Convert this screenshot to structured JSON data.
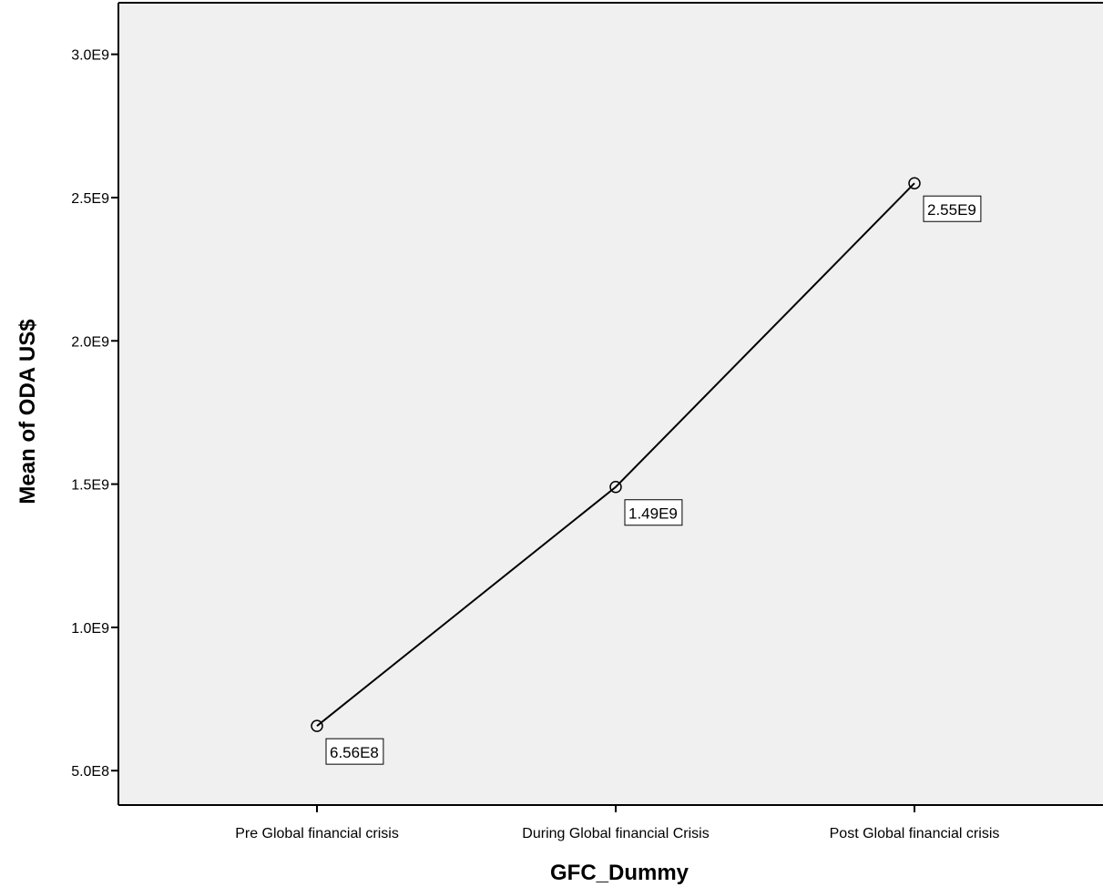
{
  "chart_data": {
    "type": "line",
    "categories": [
      "Pre Global financial crisis",
      "During Global financial Crisis",
      "Post Global financial crisis"
    ],
    "values": [
      656000000,
      1490000000,
      2550000000
    ],
    "data_labels": [
      "6.56E8",
      "1.49E9",
      "2.55E9"
    ],
    "xlabel": "GFC_Dummy",
    "ylabel": "Mean of ODA US$",
    "ylim": [
      380000000,
      3180000000
    ],
    "yticks": [
      500000000,
      1000000000,
      1500000000,
      2000000000,
      2500000000,
      3000000000
    ],
    "ytick_labels": [
      "5.0E8",
      "1.0E9",
      "1.5E9",
      "2.0E9",
      "2.5E9",
      "3.0E9"
    ],
    "grid": false,
    "legend": "none",
    "colors": {
      "plot_background": "#f0f0f0",
      "line": "#000000",
      "frame": "#000000"
    }
  }
}
